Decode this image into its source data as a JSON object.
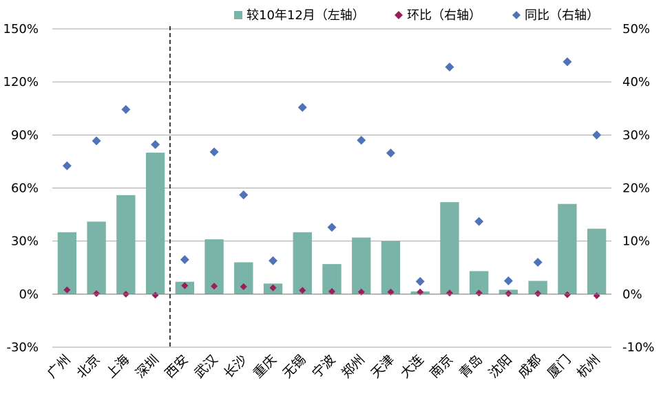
{
  "chart_data": {
    "type": "bar",
    "categories": [
      "广州",
      "北京",
      "上海",
      "深圳",
      "西安",
      "武汉",
      "长沙",
      "重庆",
      "无锡",
      "宁波",
      "郑州",
      "天津",
      "大连",
      "南京",
      "青岛",
      "沈阳",
      "成都",
      "厦门",
      "杭州"
    ],
    "series": [
      {
        "name": "较10年12月（左轴）",
        "kind": "bar",
        "axis": "left",
        "color": "#7ab3a8",
        "values": [
          35,
          41,
          56,
          80,
          7,
          31,
          18,
          6,
          35,
          17,
          32,
          30,
          1.5,
          52,
          13,
          2.5,
          7.5,
          51,
          37
        ]
      },
      {
        "name": "环比（右轴）",
        "kind": "scatter",
        "axis": "right",
        "color": "#9b1e5a",
        "values": [
          0.8,
          0.1,
          0.0,
          -0.2,
          1.6,
          1.5,
          1.4,
          1.2,
          0.7,
          0.5,
          0.4,
          0.4,
          0.4,
          0.2,
          0.2,
          0.1,
          0.1,
          -0.1,
          -0.3
        ]
      },
      {
        "name": "同比（右轴）",
        "kind": "scatter",
        "axis": "right",
        "color": "#4f73b8",
        "values": [
          24.2,
          28.9,
          34.8,
          28.2,
          6.5,
          26.8,
          18.7,
          6.3,
          35.2,
          12.6,
          29.0,
          26.6,
          2.4,
          42.8,
          13.7,
          2.5,
          6.0,
          43.8,
          30.0
        ]
      }
    ],
    "left_axis": {
      "ylim": [
        -30,
        150
      ],
      "ticks": [
        -30,
        0,
        30,
        60,
        90,
        120,
        150
      ],
      "tick_labels": [
        "-30%",
        "0%",
        "30%",
        "60%",
        "90%",
        "120%",
        "150%"
      ]
    },
    "right_axis": {
      "ylim": [
        -10,
        50
      ],
      "ticks": [
        -10,
        0,
        10,
        20,
        30,
        40,
        50
      ],
      "tick_labels": [
        "-10%",
        "0%",
        "10%",
        "20%",
        "30%",
        "40%",
        "50%"
      ]
    },
    "divider_after_category": "深圳",
    "grid": true,
    "legend": "top-right",
    "title": "",
    "xlabel": "",
    "ylabel": ""
  }
}
